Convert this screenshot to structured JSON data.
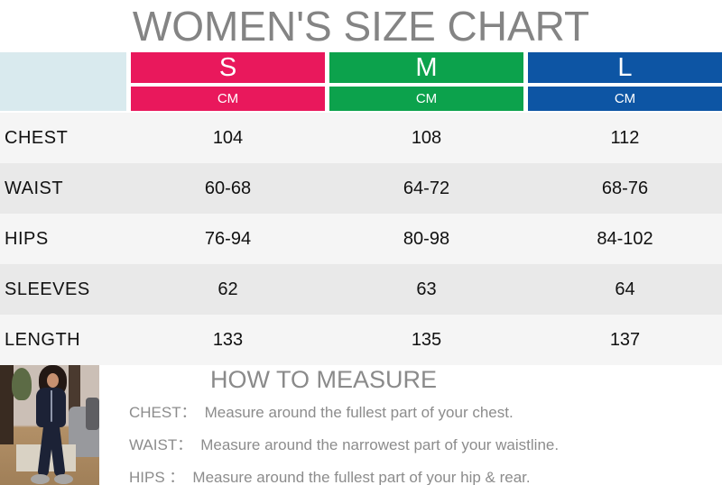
{
  "title": "WOMEN'S SIZE CHART",
  "table": {
    "unit_label": "CM",
    "sizes": [
      {
        "label": "S",
        "color": "#e9185c"
      },
      {
        "label": "M",
        "color": "#0ca24c"
      },
      {
        "label": "L",
        "color": "#0d55a4"
      }
    ],
    "rows": [
      {
        "label": "CHEST",
        "values": [
          "104",
          "108",
          "112"
        ]
      },
      {
        "label": "WAIST",
        "values": [
          "60-68",
          "64-72",
          "68-76"
        ]
      },
      {
        "label": "HIPS",
        "values": [
          "76-94",
          "80-98",
          "84-102"
        ]
      },
      {
        "label": "SLEEVES",
        "values": [
          "62",
          "63",
          "64"
        ]
      },
      {
        "label": "LENGTH",
        "values": [
          "133",
          "135",
          "137"
        ]
      }
    ]
  },
  "how_to_measure": {
    "heading": "HOW TO MEASURE",
    "items": [
      {
        "label": "CHEST：",
        "text": "Measure around the fullest part of your chest."
      },
      {
        "label": "WAIST：",
        "text": "Measure around the narrowest part of your waistline."
      },
      {
        "label": "HIPS ：",
        "text": "Measure around the fullest part of your hip & rear."
      }
    ]
  },
  "colors": {
    "title_gray": "#848484",
    "header_blank": "#d9eaee",
    "row_light": "#f5f5f5",
    "row_dark": "#e9e9e9"
  }
}
